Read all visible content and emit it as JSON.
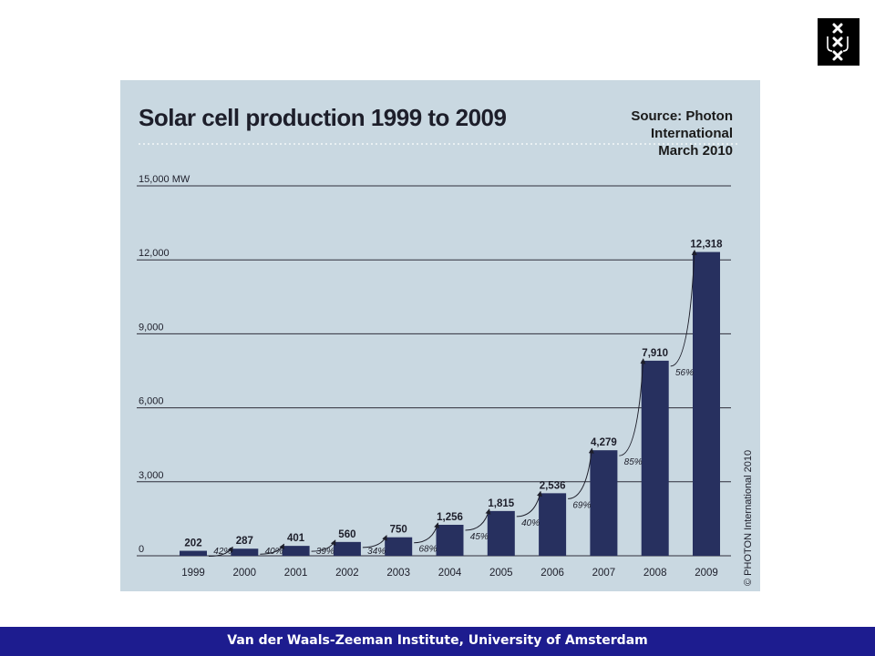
{
  "header": {
    "logo": "uva-logo"
  },
  "source_note": [
    "Source: Photon",
    "International",
    "March 2010"
  ],
  "footer": {
    "text": "Van der Waals-Zeeman Institute, University of Amsterdam"
  },
  "colors": {
    "footer_bg": "#1d1c8f",
    "chart_bg": "#c9d8e1",
    "bar": "#27305f"
  },
  "chart_data": {
    "type": "bar",
    "title": "Solar cell production 1999 to 2009",
    "categories": [
      "1999",
      "2000",
      "2001",
      "2002",
      "2003",
      "2004",
      "2005",
      "2006",
      "2007",
      "2008",
      "2009"
    ],
    "values": [
      202,
      287,
      401,
      560,
      750,
      1256,
      1815,
      2536,
      4279,
      7910,
      12318
    ],
    "value_labels": [
      "202",
      "287",
      "401",
      "560",
      "750",
      "1,256",
      "1,815",
      "2,536",
      "4,279",
      "7,910",
      "12,318"
    ],
    "growth_labels": [
      "42%",
      "40%",
      "39%",
      "34%",
      "68%",
      "45%",
      "40%",
      "69%",
      "85%",
      "56%"
    ],
    "ylim": [
      0,
      15000
    ],
    "yticks": [
      0,
      3000,
      6000,
      9000,
      12000,
      15000
    ],
    "ytick_labels": [
      "0",
      "3,000",
      "6,000",
      "9,000",
      "12,000",
      "15,000 MW"
    ],
    "grid": true,
    "copyright": "© PHOTON International 2010"
  }
}
